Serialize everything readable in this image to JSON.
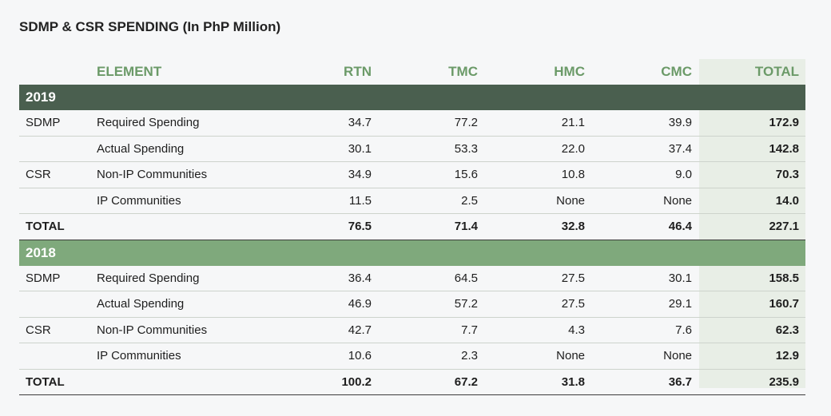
{
  "title": "SDMP & CSR SPENDING (In PhP Million)",
  "headers": {
    "element": "ELEMENT",
    "rtn": "RTN",
    "tmc": "TMC",
    "hmc": "HMC",
    "cmc": "CMC",
    "total": "TOTAL"
  },
  "colors": {
    "band_2019": "#4a5f4f",
    "band_2018": "#7fa97c",
    "header_text": "#6b9a68",
    "total_column_bg": "#e8eee6"
  },
  "y2019": {
    "year": "2019",
    "rows": [
      {
        "cat": "SDMP",
        "el": "Required Spending",
        "rtn": "34.7",
        "tmc": "77.2",
        "hmc": "21.1",
        "cmc": "39.9",
        "total": "172.9"
      },
      {
        "cat": "",
        "el": "Actual Spending",
        "rtn": "30.1",
        "tmc": "53.3",
        "hmc": "22.0",
        "cmc": "37.4",
        "total": "142.8"
      },
      {
        "cat": "CSR",
        "el": "Non-IP Communities",
        "rtn": "34.9",
        "tmc": "15.6",
        "hmc": "10.8",
        "cmc": "9.0",
        "total": "70.3"
      },
      {
        "cat": "",
        "el": "IP Communities",
        "rtn": "11.5",
        "tmc": "2.5",
        "hmc": "None",
        "cmc": "None",
        "total": "14.0"
      }
    ],
    "total": {
      "label": "TOTAL",
      "rtn": "76.5",
      "tmc": "71.4",
      "hmc": "32.8",
      "cmc": "46.4",
      "total": "227.1"
    }
  },
  "y2018": {
    "year": "2018",
    "rows": [
      {
        "cat": "SDMP",
        "el": "Required Spending",
        "rtn": "36.4",
        "tmc": "64.5",
        "hmc": "27.5",
        "cmc": "30.1",
        "total": "158.5"
      },
      {
        "cat": "",
        "el": "Actual Spending",
        "rtn": "46.9",
        "tmc": "57.2",
        "hmc": "27.5",
        "cmc": "29.1",
        "total": "160.7"
      },
      {
        "cat": "CSR",
        "el": "Non-IP Communities",
        "rtn": "42.7",
        "tmc": "7.7",
        "hmc": "4.3",
        "cmc": "7.6",
        "total": "62.3"
      },
      {
        "cat": "",
        "el": "IP Communities",
        "rtn": "10.6",
        "tmc": "2.3",
        "hmc": "None",
        "cmc": "None",
        "total": "12.9"
      }
    ],
    "total": {
      "label": "TOTAL",
      "rtn": "100.2",
      "tmc": "67.2",
      "hmc": "31.8",
      "cmc": "36.7",
      "total": "235.9"
    }
  }
}
